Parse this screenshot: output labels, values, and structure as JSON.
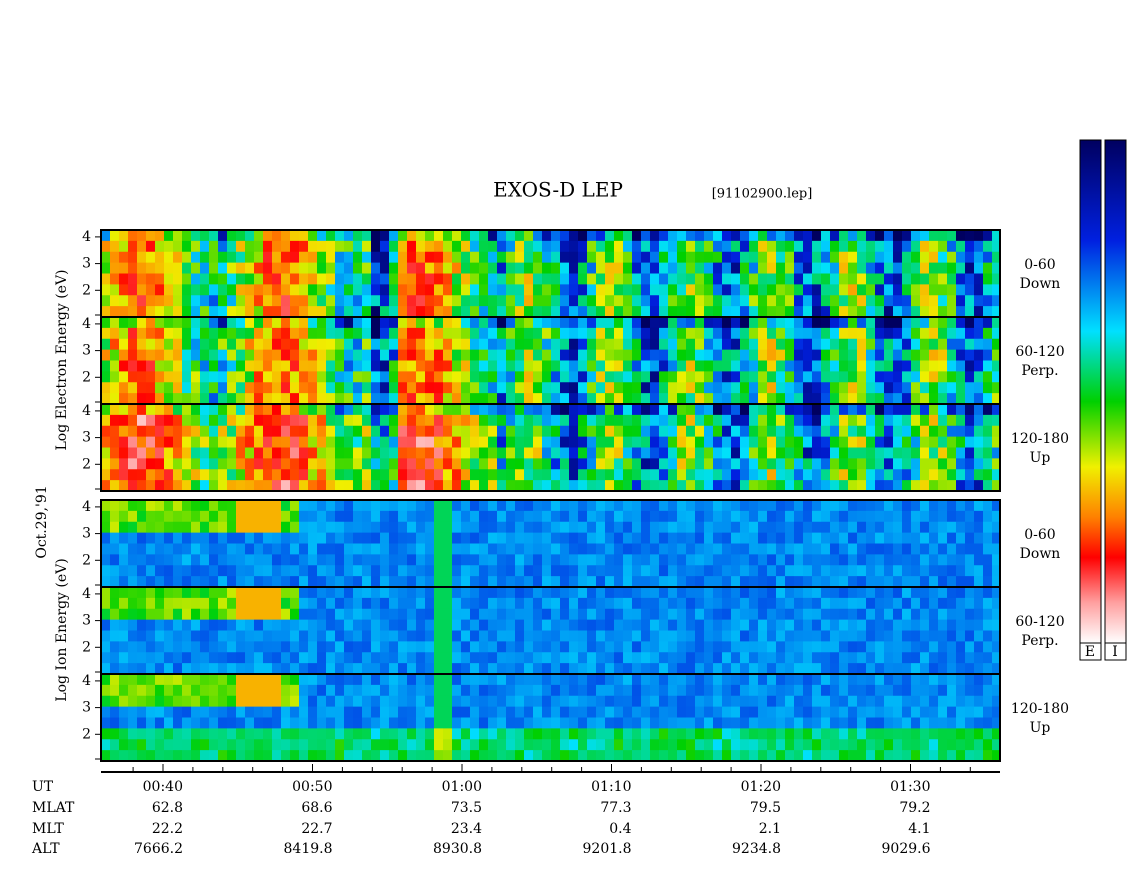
{
  "header": {
    "title": "EXOS-D LEP",
    "file": "[91102900.lep]",
    "date": "Oct.29,'91"
  },
  "groups": [
    {
      "label": "Log Electron Energy (eV)"
    },
    {
      "label": "Log Ion Energy (eV)"
    }
  ],
  "panels": [
    {
      "yticks": [
        2,
        3,
        4
      ],
      "label": [
        "0-60",
        "Down"
      ]
    },
    {
      "yticks": [
        2,
        3,
        4
      ],
      "label": [
        "60-120",
        "Perp."
      ]
    },
    {
      "yticks": [
        2,
        3,
        4
      ],
      "label": [
        "120-180",
        "Up"
      ]
    },
    {
      "yticks": [
        2,
        3,
        4
      ],
      "label": [
        "0-60",
        "Down"
      ]
    },
    {
      "yticks": [
        2,
        3,
        4
      ],
      "label": [
        "60-120",
        "Perp."
      ]
    },
    {
      "yticks": [
        2,
        3,
        4
      ],
      "label": [
        "120-180",
        "Up"
      ]
    }
  ],
  "ephemeris": {
    "rows": [
      {
        "name": "UT",
        "values": [
          "00:40",
          "00:50",
          "01:00",
          "01:10",
          "01:20",
          "01:30"
        ]
      },
      {
        "name": "MLAT",
        "values": [
          62.8,
          68.6,
          73.5,
          77.3,
          79.5,
          79.2
        ]
      },
      {
        "name": "MLT",
        "values": [
          22.2,
          22.7,
          23.4,
          0.4,
          2.1,
          4.1
        ]
      },
      {
        "name": "ALT",
        "values": [
          7666.2,
          8419.8,
          8930.8,
          9201.8,
          9234.8,
          9029.6
        ]
      }
    ]
  },
  "colorbars": [
    "E",
    "I"
  ]
}
